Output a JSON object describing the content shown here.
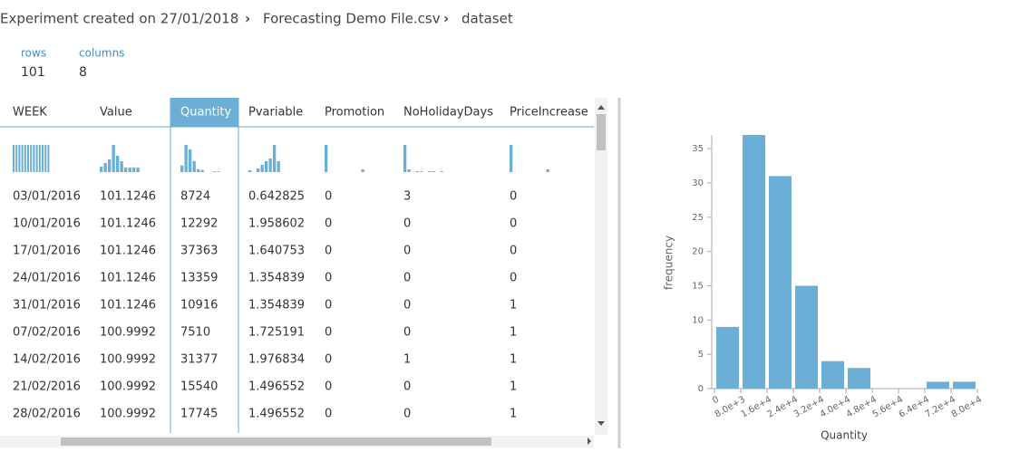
{
  "breadcrumb": [
    "Experiment created on 27/01/2018",
    "Forecasting Demo File.csv",
    "dataset"
  ],
  "stats": [
    {
      "label": "rows",
      "value": 101
    },
    {
      "label": "columns",
      "value": 8
    }
  ],
  "table": {
    "columns": [
      "WEEK",
      "Value",
      "Quantity",
      "Pvariable",
      "Promotion",
      "NoHolidayDays",
      "PriceIncrease"
    ],
    "selected_column": "Quantity",
    "sparklines": [
      [
        8,
        8,
        8,
        8,
        8,
        8,
        8,
        8,
        8,
        8,
        8,
        8,
        8
      ],
      [
        6,
        10,
        14,
        30,
        18,
        12,
        5,
        5,
        5,
        5
      ],
      [
        9,
        37,
        31,
        15,
        4,
        3,
        0,
        0,
        1,
        1
      ],
      [
        2,
        0,
        4,
        8,
        12,
        15,
        30,
        12
      ],
      [
        30,
        0,
        0,
        0,
        0,
        0,
        0,
        0,
        0,
        3
      ],
      [
        30,
        3,
        0,
        1,
        1,
        0,
        1,
        1,
        0,
        1
      ],
      [
        30,
        0,
        0,
        0,
        0,
        0,
        0,
        0,
        0,
        3
      ]
    ],
    "rows": [
      [
        "03/01/2016",
        "101.1246",
        "8724",
        "0.642825",
        "0",
        "3",
        "0"
      ],
      [
        "10/01/2016",
        "101.1246",
        "12292",
        "1.958602",
        "0",
        "0",
        "0"
      ],
      [
        "17/01/2016",
        "101.1246",
        "37363",
        "1.640753",
        "0",
        "0",
        "0"
      ],
      [
        "24/01/2016",
        "101.1246",
        "13359",
        "1.354839",
        "0",
        "0",
        "0"
      ],
      [
        "31/01/2016",
        "101.1246",
        "10916",
        "1.354839",
        "0",
        "0",
        "1"
      ],
      [
        "07/02/2016",
        "100.9992",
        "7510",
        "1.725191",
        "0",
        "0",
        "1"
      ],
      [
        "14/02/2016",
        "100.9992",
        "31377",
        "1.976834",
        "0",
        "1",
        "1"
      ],
      [
        "21/02/2016",
        "100.9992",
        "15540",
        "1.496552",
        "0",
        "0",
        "1"
      ],
      [
        "28/02/2016",
        "100.9992",
        "17745",
        "1.496552",
        "0",
        "0",
        "1"
      ]
    ]
  },
  "chart_data": {
    "type": "histogram",
    "x_label": "Quantity",
    "y_label": "frequency",
    "color": "#6baed6",
    "bins": [
      0,
      8000,
      16000,
      24000,
      32000,
      40000,
      48000,
      56000,
      64000,
      72000,
      80000
    ],
    "values": [
      9,
      37,
      31,
      15,
      4,
      3,
      0,
      0,
      1,
      1
    ],
    "xlim": [
      0,
      80000
    ],
    "xticks": [
      0,
      {
        "value": 8000,
        "label": "8.0e+3"
      },
      {
        "value": 16000,
        "label": "1.6e+4"
      },
      {
        "value": 24000,
        "label": "2.4e+4"
      },
      {
        "value": 32000,
        "label": "3.2e+4"
      },
      {
        "value": 40000,
        "label": "4.0e+4"
      },
      {
        "value": 48000,
        "label": "4.8e+4"
      },
      {
        "value": 56000,
        "label": "5.6e+4"
      },
      {
        "value": 64000,
        "label": "6.4e+4"
      },
      {
        "value": 72000,
        "label": "7.2e+4"
      },
      {
        "value": 80000,
        "label": "8.0e+4"
      }
    ],
    "ylim": [
      0,
      37
    ],
    "yticks": [
      0,
      5,
      10,
      15,
      20,
      25,
      30,
      35
    ]
  }
}
